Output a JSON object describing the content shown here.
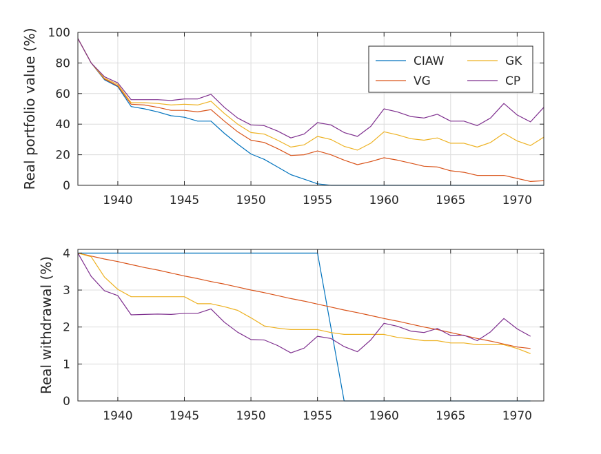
{
  "colors": {
    "CIAW": "#0072BD",
    "VG": "#D95319",
    "GK": "#EDB120",
    "CP": "#7E2F8E"
  },
  "chart_data": [
    {
      "type": "line",
      "title": "",
      "xlabel": "",
      "ylabel": "Real portfolio value (%)",
      "xlim": [
        1937,
        1972
      ],
      "ylim": [
        0,
        100
      ],
      "xticks": [
        "1940",
        "1945",
        "1950",
        "1955",
        "1960",
        "1965",
        "1970"
      ],
      "yticks": [
        "0",
        "20",
        "40",
        "60",
        "80",
        "100"
      ],
      "grid": true,
      "legend": {
        "placement": "top-right",
        "columns": 2,
        "entries": [
          "CIAW",
          "GK",
          "VG",
          "CP"
        ]
      },
      "x": [
        1937,
        1938,
        1939,
        1940,
        1941,
        1942,
        1943,
        1944,
        1945,
        1946,
        1947,
        1948,
        1949,
        1950,
        1951,
        1952,
        1953,
        1954,
        1955,
        1956,
        1957,
        1958,
        1959,
        1960,
        1961,
        1962,
        1963,
        1964,
        1965,
        1966,
        1967,
        1968,
        1969,
        1970,
        1971,
        1972
      ],
      "series": [
        {
          "name": "CIAW",
          "values": [
            96,
            80,
            69,
            64.5,
            51.5,
            50,
            48,
            45.5,
            44.5,
            42,
            42,
            34,
            27,
            20.5,
            17,
            12,
            7,
            4,
            1,
            0,
            0,
            0,
            0,
            0,
            0,
            0,
            0,
            0,
            0,
            0,
            0,
            0,
            0,
            0,
            0,
            0
          ]
        },
        {
          "name": "VG",
          "values": [
            96,
            80,
            69.5,
            65,
            53,
            52.5,
            51,
            49,
            49,
            48,
            49.5,
            42,
            35,
            29.5,
            28,
            24,
            19.5,
            20,
            22.5,
            20,
            16.5,
            13.5,
            15.5,
            18,
            16.5,
            14.5,
            12.5,
            12,
            9.5,
            8.5,
            6.5,
            6.5,
            6.5,
            4.5,
            2.5,
            3
          ]
        },
        {
          "name": "GK",
          "values": [
            96,
            80,
            70,
            66,
            54,
            54,
            53.5,
            52.5,
            53,
            52.5,
            55,
            47,
            40,
            34.5,
            33.5,
            29.5,
            25,
            26.5,
            32,
            30,
            25.5,
            23,
            27.5,
            35,
            33,
            30.5,
            29.5,
            31,
            27.5,
            27.5,
            25,
            28,
            34,
            29,
            26,
            31.5
          ]
        },
        {
          "name": "CP",
          "values": [
            96,
            80,
            71,
            67,
            56,
            56,
            56,
            55.5,
            56.5,
            56.5,
            59.5,
            51,
            44,
            39.5,
            39,
            35.5,
            31,
            33.5,
            41,
            39.5,
            34.5,
            32,
            38.5,
            50,
            48,
            45,
            44,
            46.5,
            42,
            42,
            39,
            44,
            53.5,
            46,
            41.5,
            51
          ]
        }
      ]
    },
    {
      "type": "line",
      "title": "",
      "xlabel": "",
      "ylabel": "Real withdrawal (%)",
      "xlim": [
        1937,
        1972
      ],
      "ylim": [
        0,
        4.1
      ],
      "xticks": [
        "1940",
        "1945",
        "1950",
        "1955",
        "1960",
        "1965",
        "1970"
      ],
      "yticks": [
        "0",
        "1",
        "2",
        "3",
        "4"
      ],
      "grid": true,
      "x": [
        1937,
        1938,
        1939,
        1940,
        1941,
        1942,
        1943,
        1944,
        1945,
        1946,
        1947,
        1948,
        1949,
        1950,
        1951,
        1952,
        1953,
        1954,
        1955,
        1956,
        1957,
        1958,
        1959,
        1960,
        1961,
        1962,
        1963,
        1964,
        1965,
        1966,
        1967,
        1968,
        1969,
        1970,
        1971
      ],
      "series": [
        {
          "name": "CIAW",
          "values": [
            4,
            4,
            4,
            4,
            4,
            4,
            4,
            4,
            4,
            4,
            4,
            4,
            4,
            4,
            4,
            4,
            4,
            4,
            4,
            2,
            0,
            0,
            0,
            0,
            0,
            0,
            0,
            0,
            0,
            0,
            0,
            0,
            0,
            0,
            0
          ]
        },
        {
          "name": "VG",
          "values": [
            4,
            3.92,
            3.84,
            3.77,
            3.69,
            3.61,
            3.54,
            3.46,
            3.38,
            3.31,
            3.23,
            3.16,
            3.08,
            3.0,
            2.93,
            2.85,
            2.77,
            2.7,
            2.62,
            2.54,
            2.46,
            2.39,
            2.31,
            2.23,
            2.16,
            2.08,
            2.0,
            1.93,
            1.85,
            1.77,
            1.69,
            1.62,
            1.54,
            1.46,
            1.42
          ]
        },
        {
          "name": "GK",
          "values": [
            4,
            3.9,
            3.35,
            3.02,
            2.82,
            2.82,
            2.82,
            2.82,
            2.82,
            2.63,
            2.63,
            2.55,
            2.45,
            2.25,
            2.03,
            1.97,
            1.93,
            1.93,
            1.93,
            1.85,
            1.8,
            1.8,
            1.8,
            1.8,
            1.72,
            1.68,
            1.63,
            1.63,
            1.57,
            1.57,
            1.52,
            1.52,
            1.52,
            1.42,
            1.28
          ]
        },
        {
          "name": "CP",
          "values": [
            4,
            3.37,
            2.98,
            2.85,
            2.33,
            2.34,
            2.35,
            2.34,
            2.37,
            2.37,
            2.49,
            2.13,
            1.86,
            1.66,
            1.65,
            1.5,
            1.3,
            1.43,
            1.75,
            1.69,
            1.47,
            1.33,
            1.65,
            2.1,
            2.02,
            1.89,
            1.85,
            1.96,
            1.77,
            1.78,
            1.63,
            1.87,
            2.23,
            1.95,
            1.75
          ]
        }
      ]
    }
  ]
}
